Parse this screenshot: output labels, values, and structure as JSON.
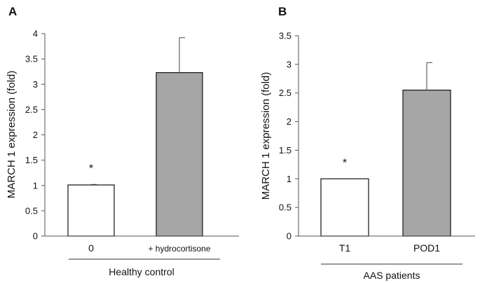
{
  "chart_data": [
    {
      "panel": "A",
      "type": "bar",
      "ylabel": "MARCH 1 expression (fold)",
      "ylim": [
        0,
        4
      ],
      "yticks": [
        "0",
        "0.5",
        "1",
        "1.5",
        "2",
        "2.5",
        "3",
        "3.5",
        "4"
      ],
      "categories": [
        "0",
        "+ hydrocortisone"
      ],
      "values": [
        1.01,
        3.23
      ],
      "errors": [
        0.01,
        0.69
      ],
      "colors": [
        "#ffffff",
        "#a6a6a6"
      ],
      "annotations": [
        "*",
        ""
      ],
      "group_label": "Healthy control"
    },
    {
      "panel": "B",
      "type": "bar",
      "ylabel": "MARCH 1 expression (fold)",
      "ylim": [
        0,
        3.5
      ],
      "yticks": [
        "0",
        "0.5",
        "1",
        "1.5",
        "2",
        "2.5",
        "3",
        "3.5"
      ],
      "categories": [
        "T1",
        "POD1"
      ],
      "values": [
        1.0,
        2.55
      ],
      "errors": [
        0.0,
        0.48
      ],
      "colors": [
        "#ffffff",
        "#a6a6a6"
      ],
      "annotations": [
        "*",
        ""
      ],
      "group_label": "AAS patients"
    }
  ]
}
